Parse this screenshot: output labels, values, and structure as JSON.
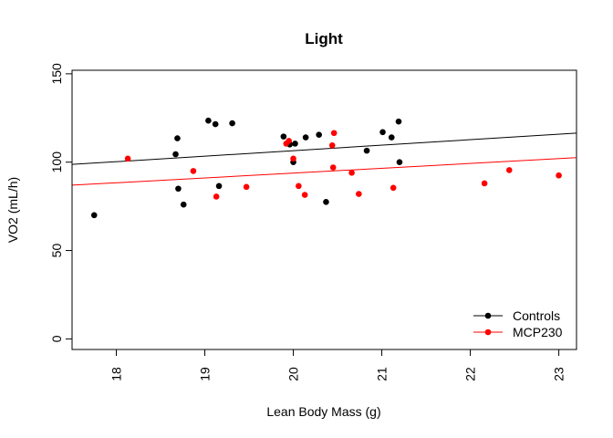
{
  "chart_data": {
    "type": "scatter",
    "title": "Light",
    "xlabel": "Lean Body Mass (g)",
    "ylabel": "VO2 (mL/h)",
    "xlim": [
      17.5,
      23.2
    ],
    "ylim": [
      -6,
      152
    ],
    "x_ticks": [
      18,
      19,
      20,
      21,
      22,
      23
    ],
    "y_ticks": [
      0,
      50,
      100,
      150
    ],
    "grid": false,
    "legend_position": "bottom-right",
    "series": [
      {
        "name": "Controls",
        "color": "#000000",
        "points": [
          [
            17.75,
            70
          ],
          [
            18.67,
            104.5
          ],
          [
            18.69,
            113.5
          ],
          [
            18.7,
            85
          ],
          [
            18.76,
            76
          ],
          [
            19.04,
            123.5
          ],
          [
            19.12,
            121.5
          ],
          [
            19.16,
            86.5
          ],
          [
            19.31,
            122
          ],
          [
            19.89,
            114.5
          ],
          [
            19.96,
            110
          ],
          [
            20.0,
            100
          ],
          [
            20.02,
            110.5
          ],
          [
            20.14,
            114
          ],
          [
            20.29,
            115.5
          ],
          [
            20.37,
            77.5
          ],
          [
            20.83,
            106.5
          ],
          [
            21.01,
            117
          ],
          [
            21.11,
            114
          ],
          [
            21.19,
            123
          ],
          [
            21.2,
            100
          ]
        ],
        "fit": {
          "intercept": 44.3,
          "slope": 3.11
        }
      },
      {
        "name": "MCP230",
        "color": "#ff0000",
        "points": [
          [
            18.13,
            102
          ],
          [
            18.87,
            95
          ],
          [
            19.13,
            80.5
          ],
          [
            19.47,
            86
          ],
          [
            19.92,
            110.5
          ],
          [
            19.95,
            112
          ],
          [
            20.0,
            102
          ],
          [
            20.06,
            86.5
          ],
          [
            20.13,
            81.5
          ],
          [
            20.44,
            109.5
          ],
          [
            20.45,
            97
          ],
          [
            20.46,
            116.5
          ],
          [
            20.66,
            94
          ],
          [
            20.74,
            82
          ],
          [
            21.13,
            85.5
          ],
          [
            22.16,
            88
          ],
          [
            22.44,
            95.5
          ],
          [
            23.0,
            92.5
          ]
        ],
        "fit": {
          "intercept": 39.2,
          "slope": 2.73
        }
      }
    ]
  }
}
